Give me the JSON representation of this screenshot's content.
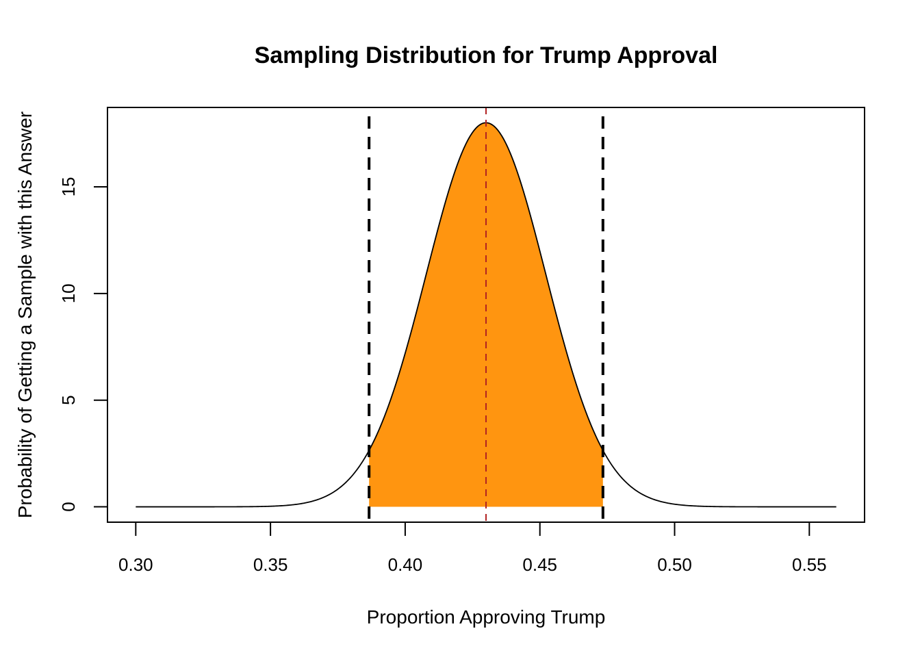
{
  "chart_data": {
    "type": "area",
    "title": "Sampling Distribution for Trump Approval",
    "xlabel": "Proportion Approving Trump",
    "ylabel": "Probability of Getting a Sample with this Answer",
    "xlim": [
      0.2895,
      0.5705
    ],
    "ylim": [
      -0.72,
      18.72
    ],
    "x_ticks": [
      0.3,
      0.35,
      0.4,
      0.45,
      0.5,
      0.55
    ],
    "x_tick_labels": [
      "0.30",
      "0.35",
      "0.40",
      "0.45",
      "0.50",
      "0.55"
    ],
    "y_ticks": [
      0,
      5,
      10,
      15
    ],
    "y_tick_labels": [
      "0",
      "5",
      "10",
      "15"
    ],
    "grid": false,
    "curve": {
      "distribution": "normal",
      "mean": 0.43,
      "sd": 0.02216,
      "x_range": [
        0.3,
        0.56
      ],
      "peak_density": 18.0,
      "color": "#000000"
    },
    "shaded_region": {
      "x_range": [
        0.3866,
        0.4734
      ],
      "color": "#FF9510"
    },
    "vlines": [
      {
        "name": "lower-bound",
        "x": 0.3866,
        "color": "#000000",
        "style": "dashed",
        "weight": "thick"
      },
      {
        "name": "upper-bound",
        "x": 0.4734,
        "color": "#000000",
        "style": "dashed",
        "weight": "thick"
      },
      {
        "name": "mean",
        "x": 0.43,
        "color": "#B22222",
        "style": "dashed",
        "weight": "thin"
      }
    ]
  }
}
